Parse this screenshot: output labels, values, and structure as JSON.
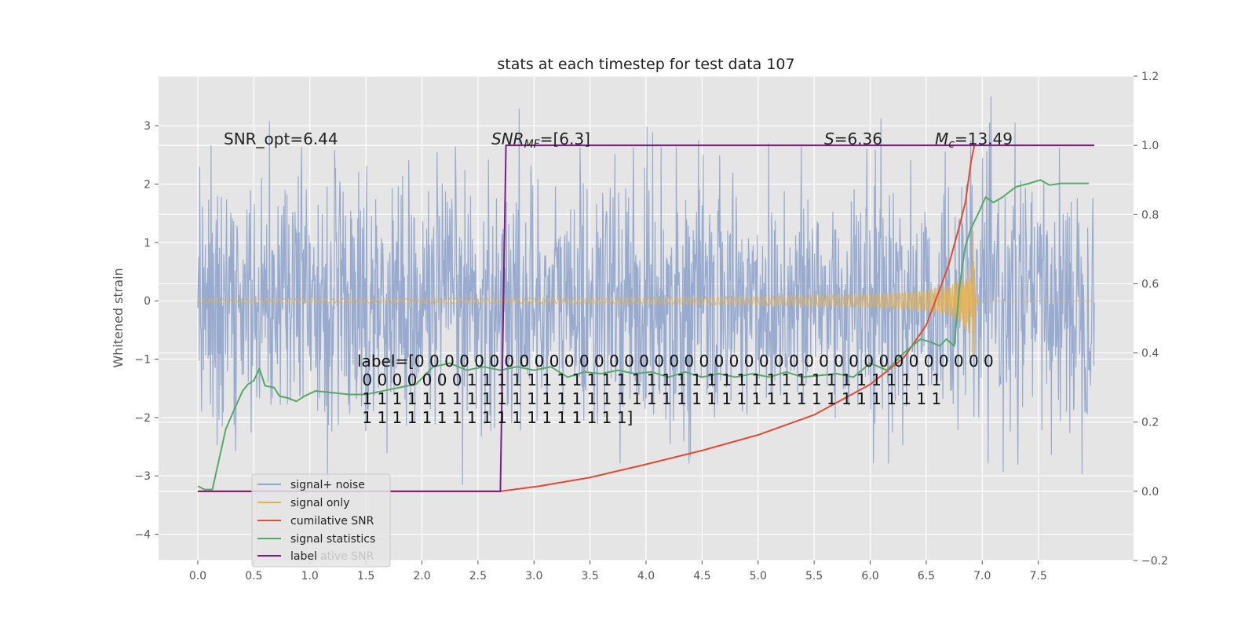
{
  "chart_data": {
    "type": "line",
    "title": "stats at each timestep for test data 107",
    "ylabel": "Whitened strain",
    "xlabel": "",
    "xlim": [
      -0.35,
      8.35
    ],
    "ylim": [
      -4.45,
      3.85
    ],
    "y2lim": [
      -0.2,
      1.2
    ],
    "grid": true,
    "background": "#e5e5e5",
    "x_ticks": [
      "0.0",
      "0.5",
      "1.0",
      "1.5",
      "2.0",
      "2.5",
      "3.0",
      "3.5",
      "4.0",
      "4.5",
      "5.0",
      "5.5",
      "6.0",
      "6.5",
      "7.0",
      "7.5"
    ],
    "y_ticks": [
      "3",
      "2",
      "1",
      "0",
      "−1",
      "−2",
      "−3",
      "−4"
    ],
    "y2_ticks": [
      "1.2",
      "1.0",
      "0.8",
      "0.6",
      "0.4",
      "0.2",
      "0.0",
      "−0.2"
    ],
    "annotations": {
      "snr_opt": "SNR_opt=6.44",
      "snr_mf_main": "SNR",
      "snr_mf_sub": "MF",
      "snr_mf_rest": "=[6.3]",
      "s_var": "S",
      "s_rest": "=6.36",
      "mc_var": "M",
      "mc_sub": "c",
      "mc_rest": "=13.49",
      "label_lines": [
        "label=[0 0 0 0 0 0 0 0 0 0 0 0 0 0 0 0 0 0 0 0 0 0 0 0 0 0 0 0 0 0 0 0 0 0 0 0 0 0 0",
        " 0 0 0 0 0 0 0 1 1 1 1 1 1 1 1 1 1 1 1 1 1 1 1 1 1 1 1 1 1 1 1 1 1 1 1 1 1 1 1",
        " 1 1 1 1 1 1 1 1 1 1 1 1 1 1 1 1 1 1 1 1 1 1 1 1 1 1 1 1 1 1 1 1 1 1 1 1 1 1 1",
        " 1 1 1 1 1 1 1 1 1 1 1 1 1 1 1 1 1 1]"
      ]
    },
    "series": [
      {
        "name": "signal+ noise",
        "color": "#8fa4cc",
        "axis": "left",
        "kind": "noise",
        "x_range": [
          0,
          8.0
        ],
        "amplitude_range": [
          -4.0,
          3.5
        ]
      },
      {
        "name": "signal only",
        "color": "#e8b04a",
        "axis": "left",
        "kind": "chirp",
        "x_range": [
          0,
          8.0
        ],
        "merger_time": 6.92,
        "peak_amplitude": 1.2
      },
      {
        "name": "cumilative SNR",
        "color": "#e24a33",
        "axis": "right",
        "x": [
          0,
          1.0,
          2.0,
          2.7,
          3.05,
          3.5,
          4.0,
          4.5,
          5.0,
          5.5,
          6.0,
          6.3,
          6.5,
          6.7,
          6.8,
          6.85,
          6.9,
          6.93
        ],
        "y": [
          0,
          0,
          0,
          0,
          0.015,
          0.04,
          0.078,
          0.118,
          0.163,
          0.221,
          0.309,
          0.386,
          0.48,
          0.653,
          0.771,
          0.836,
          0.953,
          1.0
        ]
      },
      {
        "name": "signal statistics",
        "color": "#55a868",
        "axis": "right",
        "x": [
          0,
          0.06,
          0.13,
          0.25,
          0.33,
          0.4,
          0.45,
          0.5,
          0.55,
          0.6,
          0.68,
          0.73,
          0.8,
          0.88,
          0.95,
          1.05,
          1.2,
          1.35,
          1.5,
          1.65,
          1.8,
          1.95,
          2.1,
          2.25,
          2.4,
          2.55,
          2.7,
          2.85,
          3.0,
          3.15,
          3.3,
          3.45,
          3.6,
          3.75,
          3.9,
          4.05,
          4.2,
          4.35,
          4.5,
          4.65,
          4.8,
          4.95,
          5.1,
          5.25,
          5.4,
          5.55,
          5.7,
          5.85,
          6.0,
          6.15,
          6.3,
          6.45,
          6.55,
          6.62,
          6.68,
          6.75,
          6.8,
          6.85,
          6.9,
          6.96,
          7.03,
          7.1,
          7.18,
          7.3,
          7.42,
          7.52,
          7.6,
          7.7,
          7.85,
          7.95
        ],
        "y": [
          0.015,
          0.005,
          0.005,
          0.18,
          0.24,
          0.29,
          0.31,
          0.32,
          0.355,
          0.305,
          0.3,
          0.275,
          0.27,
          0.26,
          0.275,
          0.29,
          0.285,
          0.28,
          0.28,
          0.29,
          0.3,
          0.31,
          0.36,
          0.37,
          0.35,
          0.36,
          0.35,
          0.36,
          0.35,
          0.36,
          0.33,
          0.345,
          0.34,
          0.35,
          0.34,
          0.345,
          0.33,
          0.345,
          0.33,
          0.34,
          0.33,
          0.34,
          0.33,
          0.345,
          0.33,
          0.335,
          0.34,
          0.33,
          0.37,
          0.35,
          0.4,
          0.44,
          0.43,
          0.42,
          0.44,
          0.42,
          0.6,
          0.71,
          0.76,
          0.8,
          0.85,
          0.835,
          0.85,
          0.88,
          0.89,
          0.9,
          0.885,
          0.89,
          0.89,
          0.89
        ]
      },
      {
        "name": "label",
        "color": "#7a1e82",
        "axis": "right",
        "x": [
          0,
          2.7,
          2.75,
          8.0
        ],
        "y": [
          0,
          0,
          1.0,
          1.0
        ]
      }
    ],
    "legend": {
      "placement": "lower-left",
      "ghost_text": "cumilative SNR"
    }
  }
}
